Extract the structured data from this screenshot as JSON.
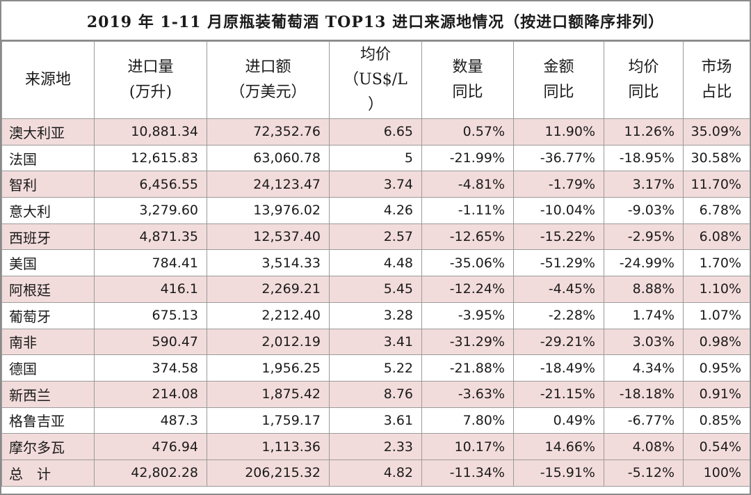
{
  "title": "2019 年 1-11 月原瓶装葡萄酒 TOP13 进口来源地情况（按进口额降序排列）",
  "headers": [
    [
      "来源地"
    ],
    [
      "进口量",
      "(万升)"
    ],
    [
      "进口额",
      "（万美元）"
    ],
    [
      "均价",
      "（US$/L",
      "）"
    ],
    [
      "数量",
      "同比"
    ],
    [
      "金额",
      "同比"
    ],
    [
      "均价",
      "同比"
    ],
    [
      "市场",
      "占比"
    ]
  ],
  "rows": [
    [
      "澳大利亚",
      "10,881.34",
      "72,352.76",
      "6.65",
      "0.57%",
      "11.90%",
      "11.26%",
      "35.09%"
    ],
    [
      "法国",
      "12,615.83",
      "63,060.78",
      "5",
      "-21.99%",
      "-36.77%",
      "-18.95%",
      "30.58%"
    ],
    [
      "智利",
      "6,456.55",
      "24,123.47",
      "3.74",
      "-4.81%",
      "-1.79%",
      "3.17%",
      "11.70%"
    ],
    [
      "意大利",
      "3,279.60",
      "13,976.02",
      "4.26",
      "-1.11%",
      "-10.04%",
      "-9.03%",
      "6.78%"
    ],
    [
      "西班牙",
      "4,871.35",
      "12,537.40",
      "2.57",
      "-12.65%",
      "-15.22%",
      "-2.95%",
      "6.08%"
    ],
    [
      "美国",
      "784.41",
      "3,514.33",
      "4.48",
      "-35.06%",
      "-51.29%",
      "-24.99%",
      "1.70%"
    ],
    [
      "阿根廷",
      "416.1",
      "2,269.21",
      "5.45",
      "-12.24%",
      "-4.45%",
      "8.88%",
      "1.10%"
    ],
    [
      "葡萄牙",
      "675.13",
      "2,212.40",
      "3.28",
      "-3.95%",
      "-2.28%",
      "1.74%",
      "1.07%"
    ],
    [
      "南非",
      "590.47",
      "2,012.19",
      "3.41",
      "-31.29%",
      "-29.21%",
      "3.03%",
      "0.98%"
    ],
    [
      "德国",
      "374.58",
      "1,956.25",
      "5.22",
      "-21.88%",
      "-18.49%",
      "4.34%",
      "0.95%"
    ],
    [
      "新西兰",
      "214.08",
      "1,875.42",
      "8.76",
      "-3.63%",
      "-21.15%",
      "-18.18%",
      "0.91%"
    ],
    [
      "格鲁吉亚",
      "487.3",
      "1,759.17",
      "3.61",
      "7.80%",
      "0.49%",
      "-6.77%",
      "0.85%"
    ],
    [
      "摩尔多瓦",
      "476.94",
      "1,113.36",
      "2.33",
      "10.17%",
      "14.66%",
      "4.08%",
      "0.54%"
    ]
  ],
  "total": [
    "总　计",
    "42,802.28",
    "206,215.32",
    "4.82",
    "-11.34%",
    "-15.91%",
    "-5.12%",
    "100%"
  ],
  "colors": {
    "shade": "#f2dcdb",
    "border": "#9a9a9a"
  }
}
